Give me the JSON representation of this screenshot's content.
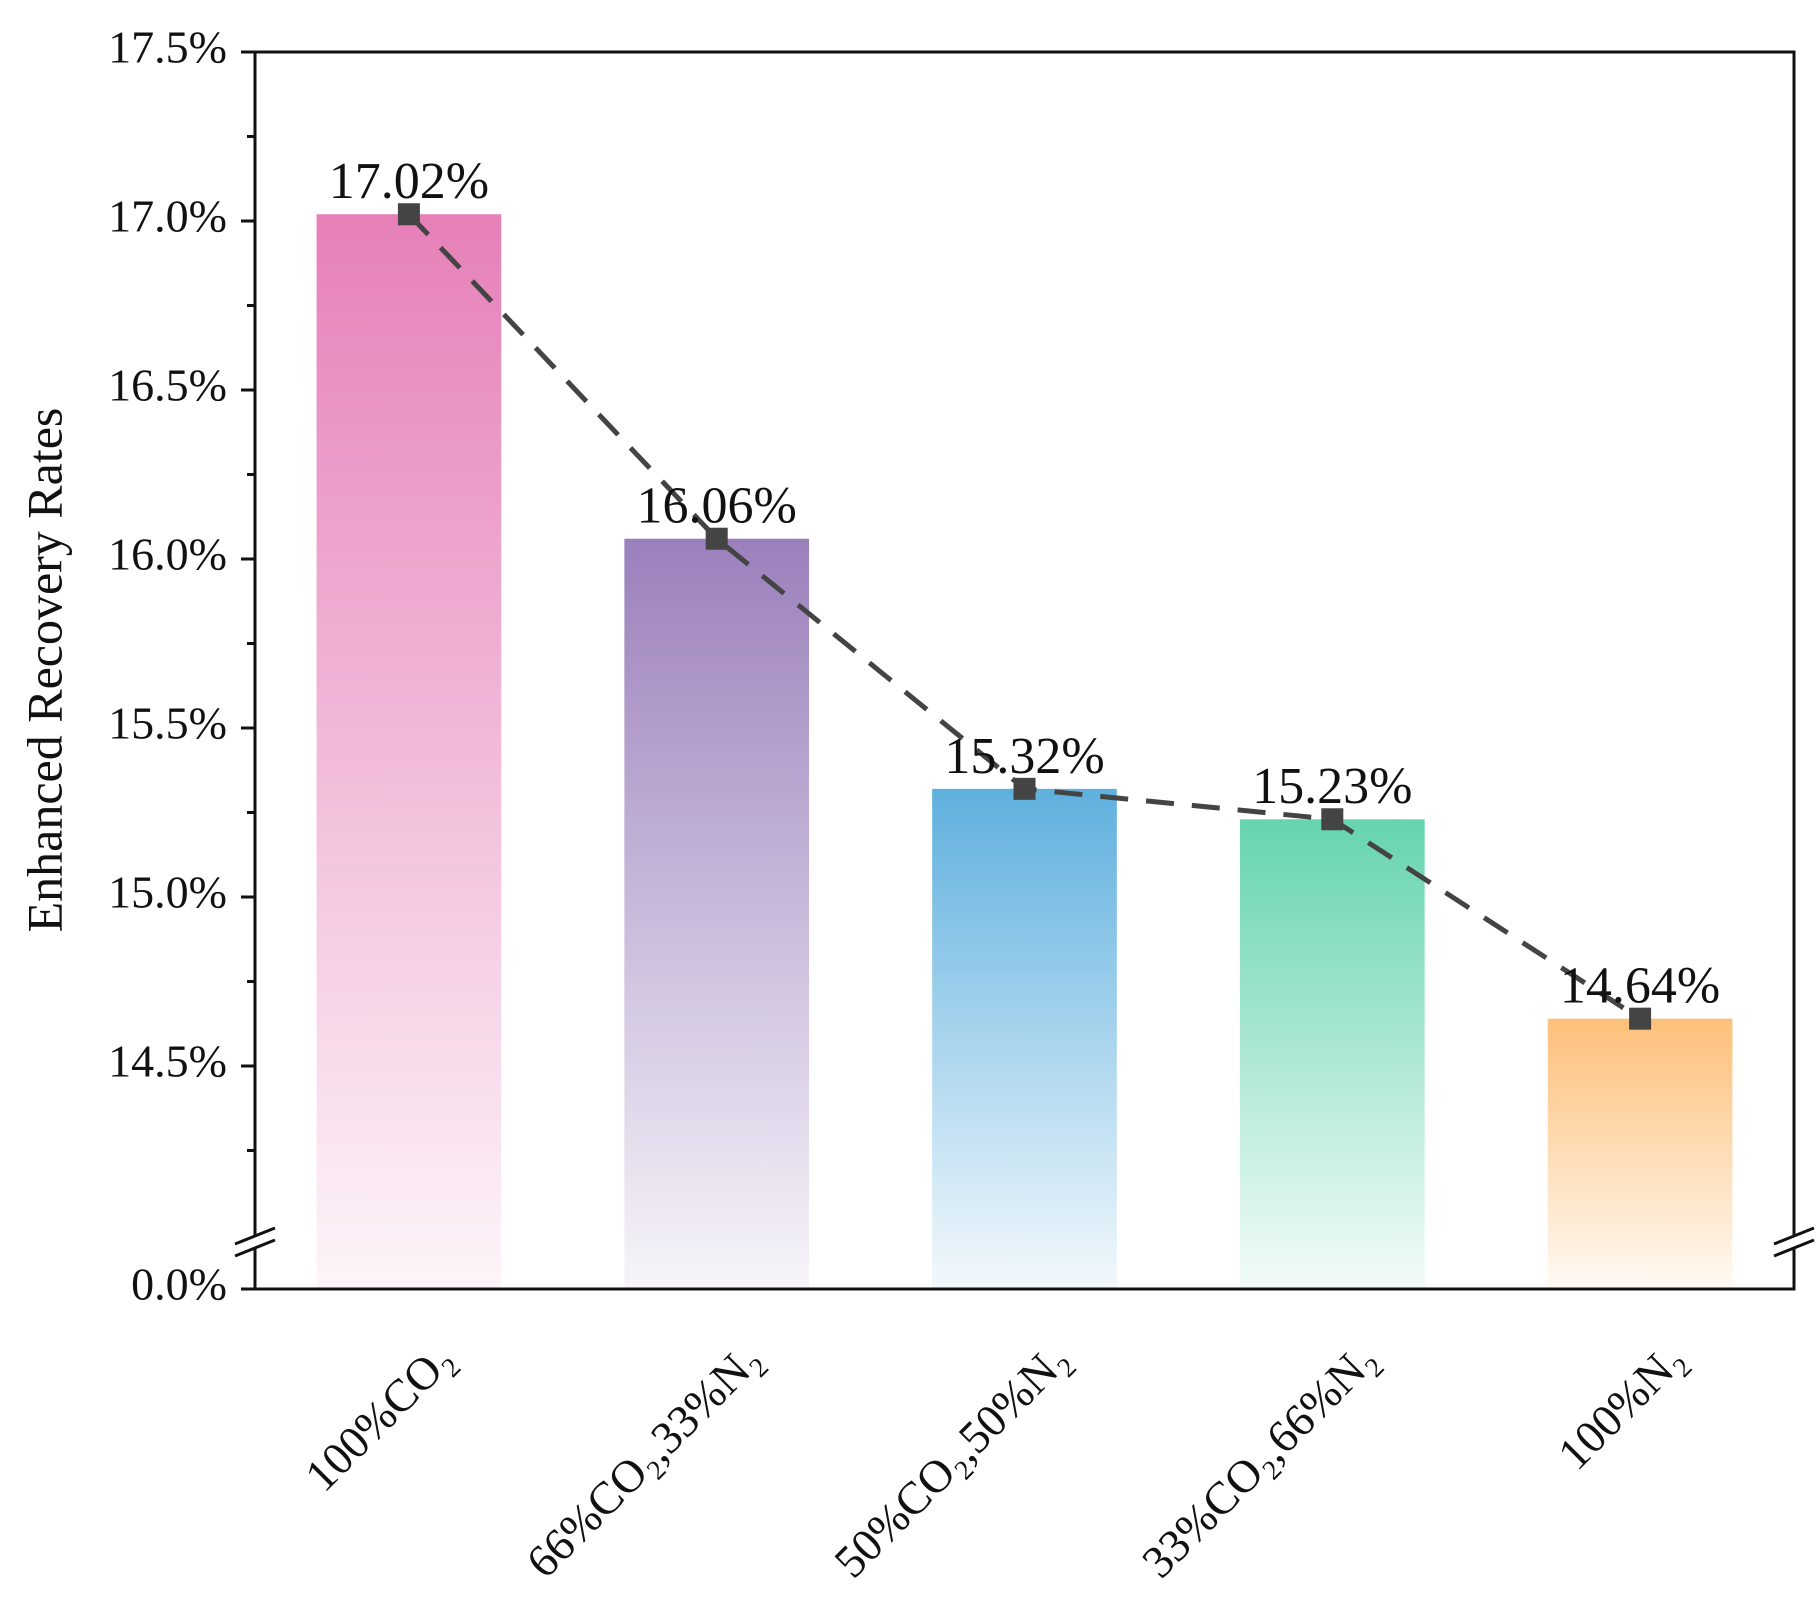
{
  "chart_data": {
    "type": "bar",
    "y_label": "Enhanced Recovery Rates",
    "categories": [
      "100%CO₂",
      "66%CO₂,33%N₂",
      "50%CO₂,50%N₂",
      "33%CO₂,66%N₂",
      "100%N₂"
    ],
    "values": [
      17.02,
      16.06,
      15.32,
      15.23,
      14.64
    ],
    "value_labels": [
      "17.02%",
      "16.06%",
      "15.32%",
      "15.23%",
      "14.64%"
    ],
    "colors": [
      "#e680b8",
      "#9b80bc",
      "#5fb0de",
      "#66d4b0",
      "#fdc07a"
    ],
    "line_color": "#444444",
    "ylim": [
      0,
      17.5
    ],
    "ybreak": [
      0.1,
      14
    ],
    "yticks": [
      {
        "value": 0,
        "label": "0.0%"
      },
      {
        "value": 14.5,
        "label": "14.5%"
      },
      {
        "value": 15,
        "label": "15.0%"
      },
      {
        "value": 15.5,
        "label": "15.5%"
      },
      {
        "value": 16,
        "label": "16.0%"
      },
      {
        "value": 16.5,
        "label": "16.5%"
      },
      {
        "value": 17,
        "label": "17.0%"
      },
      {
        "value": 17.5,
        "label": "17.5%"
      }
    ]
  }
}
